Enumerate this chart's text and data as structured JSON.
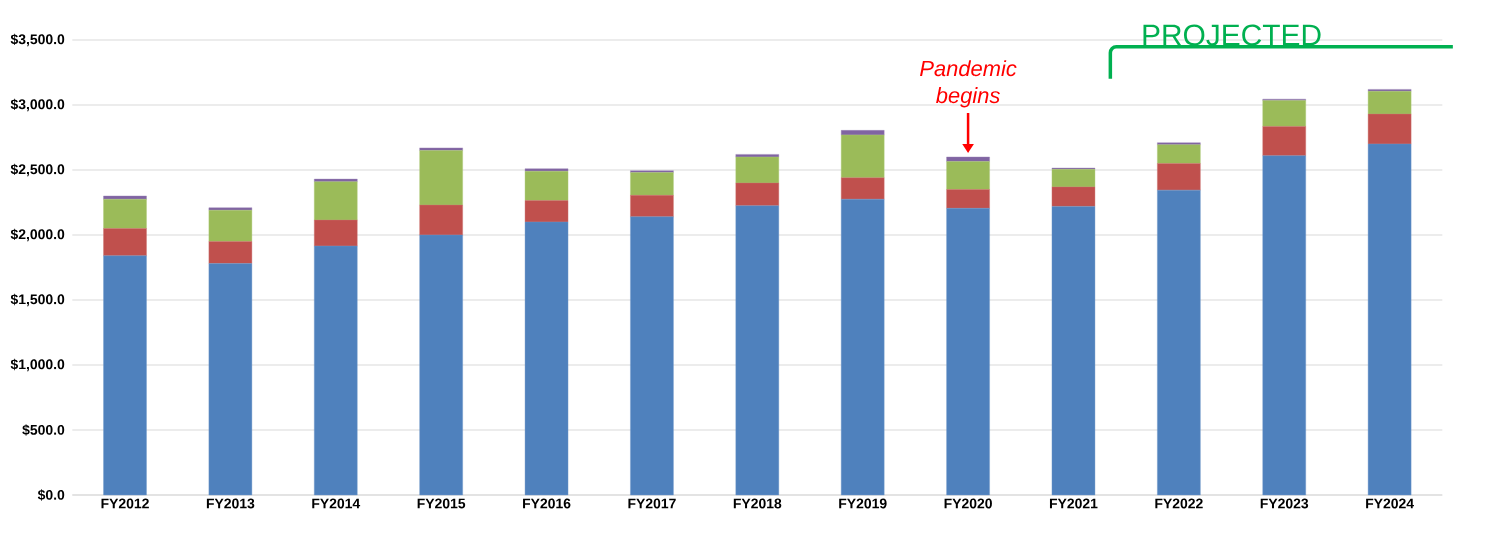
{
  "chart_data": {
    "type": "bar",
    "stacked": true,
    "grid": "y",
    "categories": [
      "FY2012",
      "FY2013",
      "FY2014",
      "FY2015",
      "FY2016",
      "FY2017",
      "FY2018",
      "FY2019",
      "FY2020",
      "FY2021",
      "FY2022",
      "FY2023",
      "FY2024"
    ],
    "series": [
      {
        "color": "#4f81bd",
        "values": [
          1840,
          1780,
          1915,
          2000,
          2100,
          2140,
          2225,
          2275,
          2205,
          2220,
          2345,
          2610,
          2700
        ]
      },
      {
        "color": "#c0504d",
        "values": [
          210,
          170,
          200,
          230,
          165,
          165,
          175,
          165,
          145,
          150,
          205,
          225,
          230
        ]
      },
      {
        "color": "#9bbb59",
        "values": [
          225,
          240,
          295,
          420,
          225,
          175,
          200,
          330,
          215,
          135,
          145,
          200,
          175
        ]
      },
      {
        "color": "#8064a2",
        "values": [
          25,
          20,
          20,
          20,
          20,
          15,
          20,
          35,
          35,
          10,
          15,
          10,
          15
        ]
      }
    ],
    "ylim": [
      0,
      3500
    ],
    "yticks": [
      {
        "value": 0,
        "label": "$0.0"
      },
      {
        "value": 500,
        "label": "$500.0"
      },
      {
        "value": 1000,
        "label": "$1,000.0"
      },
      {
        "value": 1500,
        "label": "$1,500.0"
      },
      {
        "value": 2000,
        "label": "$2,000.0"
      },
      {
        "value": 2500,
        "label": "$2,500.0"
      },
      {
        "value": 3000,
        "label": "$3,000.0"
      },
      {
        "value": 3500,
        "label": "$3,500.0"
      }
    ],
    "annotations": [
      {
        "text": "Pandemic begins",
        "x": "FY2020",
        "y": 2600
      },
      "PROJECTED"
    ]
  }
}
